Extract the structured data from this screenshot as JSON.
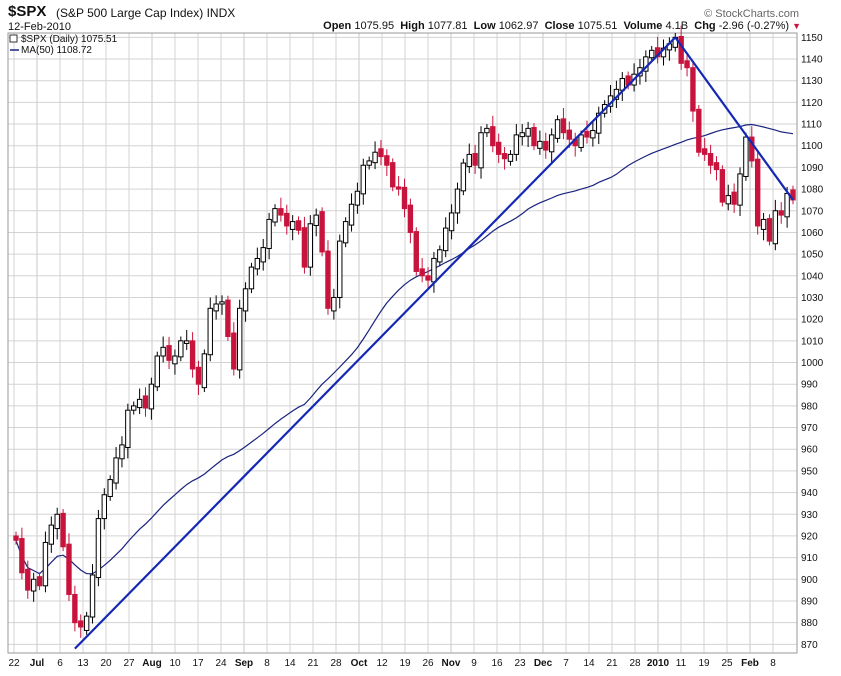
{
  "header": {
    "symbol": "$SPX",
    "name": "(S&P 500 Large Cap Index)",
    "exchange": "INDX",
    "date": "12-Feb-2010",
    "brand": "© StockCharts.com",
    "open_label": "Open",
    "open": "1075.95",
    "high_label": "High",
    "high": "1077.81",
    "low_label": "Low",
    "low": "1062.97",
    "close_label": "Close",
    "close": "1075.51",
    "volume_label": "Volume",
    "volume": "4.1B",
    "chg_label": "Chg",
    "chg": "-2.96 (-0.27%)",
    "chg_arrow": "▼"
  },
  "legend": {
    "price": "$SPX (Daily) 1075.51",
    "ma": "MA(50) 1108.72"
  },
  "colors": {
    "up": "#000000",
    "down": "#c8143c",
    "ma": "#1a237e",
    "trendline": "#1428b4",
    "grid": "#d3d3d3"
  },
  "chart_data": {
    "type": "candlestick",
    "title": "$SPX (S&P 500 Large Cap Index) INDX",
    "ylim": [
      866,
      1152
    ],
    "y_ticks": [
      870,
      880,
      890,
      900,
      910,
      920,
      930,
      940,
      950,
      960,
      970,
      980,
      990,
      1000,
      1010,
      1020,
      1030,
      1040,
      1050,
      1060,
      1070,
      1080,
      1090,
      1100,
      1110,
      1120,
      1130,
      1140,
      1150
    ],
    "x_tick_labels": [
      "22",
      "Jul",
      "6",
      "13",
      "20",
      "27",
      "Aug",
      "10",
      "17",
      "24",
      "Sep",
      "8",
      "14",
      "21",
      "28",
      "Oct",
      "12",
      "19",
      "26",
      "Nov",
      "9",
      "16",
      "23",
      "Dec",
      "7",
      "14",
      "21",
      "28",
      "2010",
      "11",
      "19",
      "25",
      "Feb",
      "8"
    ],
    "close_series": [
      918,
      903,
      895,
      900,
      897,
      917,
      925,
      930,
      915,
      893,
      880,
      878,
      883,
      902,
      928,
      939,
      946,
      956,
      962,
      978,
      980,
      983,
      979,
      990,
      1003,
      1007,
      1001,
      1003,
      1010,
      1010,
      997,
      990,
      1004,
      1025,
      1027,
      1028,
      1012,
      997,
      1025,
      1034,
      1044,
      1048,
      1053,
      1066,
      1071,
      1068,
      1063,
      1065,
      1061,
      1044,
      1064,
      1068,
      1051,
      1025,
      1030,
      1056,
      1065,
      1073,
      1079,
      1091,
      1093,
      1097,
      1095,
      1091,
      1081,
      1080,
      1071,
      1060,
      1042,
      1040,
      1038,
      1048,
      1052,
      1062,
      1069,
      1080,
      1092,
      1096,
      1091,
      1106,
      1108,
      1100,
      1096,
      1094,
      1096,
      1105,
      1106,
      1108,
      1100,
      1102,
      1098,
      1105,
      1112,
      1106,
      1103,
      1100,
      1105,
      1104,
      1107,
      1115,
      1119,
      1123,
      1126,
      1131,
      1128,
      1133,
      1136,
      1141,
      1144,
      1141,
      1145,
      1147,
      1150,
      1138,
      1136,
      1116,
      1097,
      1096,
      1091,
      1089,
      1074,
      1077,
      1073,
      1087,
      1104,
      1093,
      1063,
      1066,
      1056,
      1070,
      1068,
      1078,
      1075
    ],
    "series": [
      {
        "name": "$SPX (Daily)",
        "type": "candlestick"
      },
      {
        "name": "MA(50)",
        "type": "line",
        "last": 1108.72
      }
    ],
    "annotations": [
      {
        "type": "trendline",
        "from": {
          "x": "2009-07-07",
          "y": 868
        },
        "to": {
          "x": "2010-01-19",
          "y": 1150
        }
      },
      {
        "type": "trendline",
        "from": {
          "x": "2010-01-19",
          "y": 1150
        },
        "to": {
          "x": "2010-02-12",
          "y": 1075
        }
      }
    ],
    "grid": true,
    "legend_position": "top-left"
  }
}
